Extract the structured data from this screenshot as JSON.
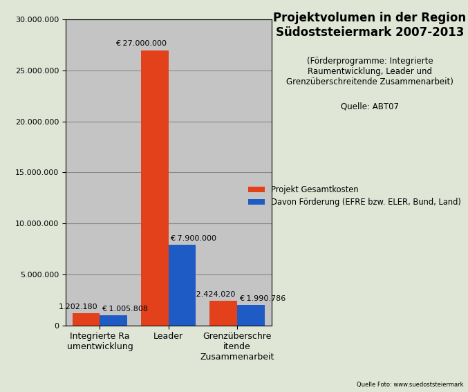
{
  "chart_data": {
    "type": "bar",
    "title": "Projektvolumen in der Region Südoststeiermark 2007-2013",
    "subtitle": "(Förderprogramme: Integrierte Raumentwicklung, Leader und Grenzüberschreitende Zusammenarbeit)",
    "annotations": [
      "Quelle: ABT07",
      "Quelle Foto: www.suedoststeiermark"
    ],
    "categories": [
      "Integrierte Raumentwicklung",
      "Leader",
      "Grenzüberschreitende Zusammenarbeit"
    ],
    "series": [
      {
        "name": "Projekt Gesamtkosten",
        "color": "#e2411b",
        "values": [
          1202180,
          27000000,
          2424020
        ],
        "value_labels": [
          "1.202.180",
          "€ 27.000.000",
          "€ 2.424.020"
        ]
      },
      {
        "name": "Davon Förderung (EFRE bzw. ELER, Bund, Land)",
        "color": "#1f5bc4",
        "values": [
          1005808,
          7900000,
          1990786
        ],
        "value_labels": [
          "€ 1.005.808",
          "€ 7.900.000",
          "€ 1.990.786"
        ]
      }
    ],
    "ylim": [
      0,
      30000000
    ],
    "yticks": [
      0,
      {
        "value": 5000000,
        "label": "5.000.000"
      },
      {
        "value": 10000000,
        "label": "10.000.000"
      },
      {
        "value": 15000000,
        "label": "15.000.000"
      },
      {
        "value": 20000000,
        "label": "20.000.000"
      },
      {
        "value": 25000000,
        "label": "25.000.000"
      },
      {
        "value": 30000000,
        "label": "30.000.000"
      }
    ],
    "grid": true,
    "legend": "center right",
    "data_labels": true
  }
}
